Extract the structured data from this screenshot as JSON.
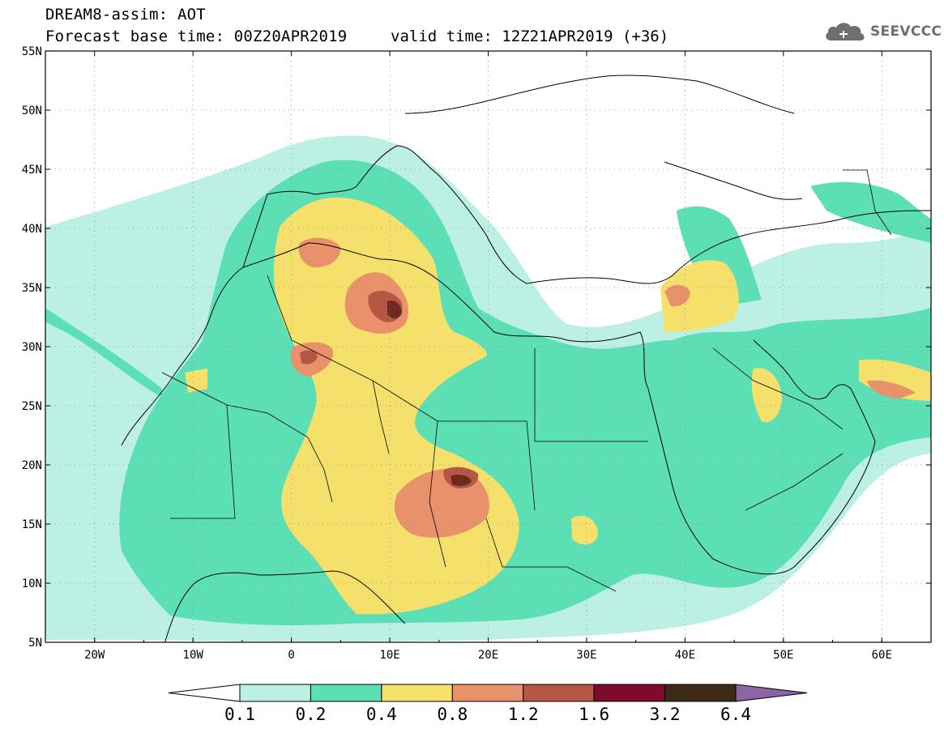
{
  "header": {
    "line1": "DREAM8-assim: AOT",
    "line2": "Forecast base time: 00Z20APR2019",
    "valid": "valid time: 12Z21APR2019 (+36)"
  },
  "logo": {
    "text": "SEEVCCC",
    "icon": "cloud-icon",
    "color": "#6f6f6f"
  },
  "map": {
    "lon_range": [
      -25,
      65
    ],
    "lat_range": [
      5,
      55
    ],
    "lat_labels": [
      "55N",
      "50N",
      "45N",
      "40N",
      "35N",
      "30N",
      "25N",
      "20N",
      "15N",
      "10N",
      "5N"
    ],
    "lon_labels": [
      "20W",
      "10W",
      "0",
      "10E",
      "20E",
      "30E",
      "40E",
      "50E",
      "60E"
    ],
    "grid": true,
    "grid_style": "dotted"
  },
  "colorbar": {
    "labels": [
      "0.1",
      "0.2",
      "0.4",
      "0.8",
      "1.2",
      "1.6",
      "3.2",
      "6.4"
    ],
    "colors": [
      "#ffffff",
      "#bdf0e4",
      "#5ddfb5",
      "#f5e06c",
      "#e8916a",
      "#b65644",
      "#7e0a2c",
      "#3d2a16",
      "#8d65a6"
    ],
    "extend": "both"
  }
}
